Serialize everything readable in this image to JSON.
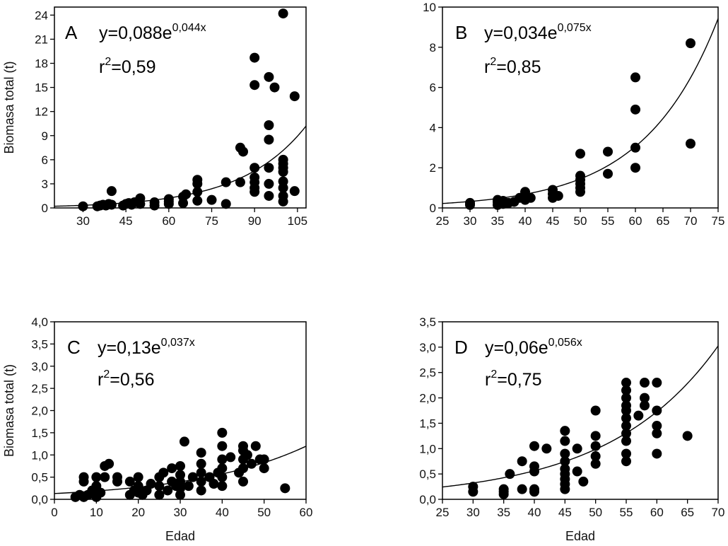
{
  "figure": {
    "shared_ylabel": "Biomasa total (t)",
    "shared_xlabel": "Edad"
  },
  "chart_data": [
    {
      "type": "scatter",
      "panel": "A",
      "xlabel": "",
      "ylabel": "Biomasa total (t)",
      "equation_main": "y=0,088e",
      "equation_exp": "0,044x",
      "r2_label": "r",
      "r2_sup": "2",
      "r2_value": "=0,59",
      "xlim": [
        20,
        108
      ],
      "ylim": [
        0,
        25
      ],
      "xticks": [
        30,
        45,
        60,
        75,
        90,
        105
      ],
      "xtick_labels": [
        "30",
        "45",
        "60",
        "75",
        "90",
        "105"
      ],
      "yticks": [
        0,
        3,
        6,
        9,
        12,
        15,
        18,
        21,
        24
      ],
      "ytick_labels": [
        "0",
        "3",
        "6",
        "9",
        "12",
        "15",
        "18",
        "21",
        "24"
      ],
      "fit": {
        "a": 0.088,
        "b": 0.044
      },
      "points": [
        [
          30,
          0.2
        ],
        [
          35,
          0.2
        ],
        [
          36,
          0.3
        ],
        [
          37,
          0.4
        ],
        [
          38,
          0.3
        ],
        [
          39,
          0.5
        ],
        [
          40,
          0.4
        ],
        [
          40,
          2.1
        ],
        [
          44,
          0.3
        ],
        [
          45,
          0.5
        ],
        [
          46,
          0.6
        ],
        [
          47,
          0.4
        ],
        [
          48,
          0.7
        ],
        [
          50,
          0.5
        ],
        [
          50,
          1.2
        ],
        [
          55,
          0.7
        ],
        [
          55,
          0.3
        ],
        [
          60,
          0.5
        ],
        [
          60,
          1.1
        ],
        [
          60,
          0.8
        ],
        [
          65,
          0.6
        ],
        [
          65,
          1.4
        ],
        [
          66,
          1.7
        ],
        [
          70,
          0.9
        ],
        [
          70,
          2.0
        ],
        [
          70,
          3.0
        ],
        [
          70,
          3.5
        ],
        [
          75,
          1.0
        ],
        [
          80,
          0.5
        ],
        [
          80,
          3.2
        ],
        [
          85,
          7.5
        ],
        [
          86,
          7.0
        ],
        [
          85,
          3.2
        ],
        [
          90,
          18.7
        ],
        [
          90,
          15.3
        ],
        [
          90,
          5.0
        ],
        [
          90,
          3.8
        ],
        [
          90,
          3.2
        ],
        [
          90,
          2.5
        ],
        [
          90,
          2.0
        ],
        [
          95,
          16.3
        ],
        [
          97,
          15.0
        ],
        [
          95,
          10.3
        ],
        [
          95,
          8.5
        ],
        [
          95,
          5.0
        ],
        [
          95,
          3.0
        ],
        [
          95,
          1.5
        ],
        [
          100,
          24.2
        ],
        [
          100,
          6.0
        ],
        [
          100,
          5.5
        ],
        [
          100,
          5.0
        ],
        [
          100,
          4.5
        ],
        [
          100,
          3.3
        ],
        [
          100,
          2.5
        ],
        [
          100,
          1.5
        ],
        [
          100,
          0.8
        ],
        [
          104,
          13.9
        ],
        [
          104,
          2.1
        ]
      ]
    },
    {
      "type": "scatter",
      "panel": "B",
      "xlabel": "",
      "ylabel": "",
      "equation_main": "y=0,034e",
      "equation_exp": "0,075x",
      "r2_label": "r",
      "r2_sup": "2",
      "r2_value": "=0,85",
      "xlim": [
        25,
        75
      ],
      "ylim": [
        0,
        10
      ],
      "xticks": [
        25,
        30,
        35,
        40,
        45,
        50,
        55,
        60,
        65,
        70,
        75
      ],
      "xtick_labels": [
        "25",
        "30",
        "35",
        "40",
        "45",
        "50",
        "55",
        "60",
        "65",
        "70",
        "75"
      ],
      "yticks": [
        0,
        2,
        4,
        6,
        8,
        10
      ],
      "ytick_labels": [
        "0",
        "2",
        "4",
        "6",
        "8",
        "10"
      ],
      "fit": {
        "a": 0.034,
        "b": 0.075
      },
      "points": [
        [
          30,
          0.15
        ],
        [
          30,
          0.25
        ],
        [
          35,
          0.15
        ],
        [
          35,
          0.3
        ],
        [
          35,
          0.4
        ],
        [
          36,
          0.2
        ],
        [
          36,
          0.35
        ],
        [
          37,
          0.25
        ],
        [
          38,
          0.3
        ],
        [
          39,
          0.5
        ],
        [
          40,
          0.4
        ],
        [
          40,
          0.6
        ],
        [
          40,
          0.8
        ],
        [
          41,
          0.5
        ],
        [
          45,
          0.5
        ],
        [
          45,
          0.7
        ],
        [
          45,
          0.9
        ],
        [
          46,
          0.6
        ],
        [
          50,
          0.8
        ],
        [
          50,
          1.0
        ],
        [
          50,
          1.2
        ],
        [
          50,
          1.4
        ],
        [
          50,
          1.6
        ],
        [
          50,
          2.7
        ],
        [
          55,
          1.7
        ],
        [
          55,
          2.8
        ],
        [
          60,
          2.0
        ],
        [
          60,
          3.0
        ],
        [
          60,
          4.9
        ],
        [
          60,
          6.5
        ],
        [
          70,
          3.2
        ],
        [
          70,
          8.2
        ]
      ]
    },
    {
      "type": "scatter",
      "panel": "C",
      "xlabel": "Edad",
      "ylabel": "Biomasa total (t)",
      "equation_main": "y=0,13e",
      "equation_exp": "0,037x",
      "r2_label": "r",
      "r2_sup": "2",
      "r2_value": "=0,56",
      "xlim": [
        0,
        60
      ],
      "ylim": [
        0,
        4
      ],
      "xticks": [
        0,
        10,
        20,
        30,
        40,
        50,
        60
      ],
      "xtick_labels": [
        "0",
        "10",
        "20",
        "30",
        "40",
        "50",
        "60"
      ],
      "yticks": [
        0,
        0.5,
        1,
        1.5,
        2,
        2.5,
        3,
        3.5,
        4
      ],
      "ytick_labels": [
        "0,0",
        "0,5",
        "1,0",
        "1,5",
        "2,0",
        "2,5",
        "3,0",
        "3,5",
        "4,0"
      ],
      "fit": {
        "a": 0.13,
        "b": 0.037
      },
      "points": [
        [
          5,
          0.05
        ],
        [
          6,
          0.1
        ],
        [
          7,
          0.05
        ],
        [
          7,
          0.4
        ],
        [
          7,
          0.5
        ],
        [
          8,
          0.1
        ],
        [
          9,
          0.2
        ],
        [
          10,
          0.05
        ],
        [
          10,
          0.3
        ],
        [
          10,
          0.5
        ],
        [
          11,
          0.15
        ],
        [
          12,
          0.5
        ],
        [
          12,
          0.75
        ],
        [
          13,
          0.8
        ],
        [
          15,
          0.4
        ],
        [
          15,
          0.5
        ],
        [
          18,
          0.1
        ],
        [
          18,
          0.4
        ],
        [
          19,
          0.2
        ],
        [
          20,
          0.15
        ],
        [
          20,
          0.3
        ],
        [
          20,
          0.5
        ],
        [
          21,
          0.1
        ],
        [
          22,
          0.2
        ],
        [
          23,
          0.35
        ],
        [
          25,
          0.1
        ],
        [
          25,
          0.3
        ],
        [
          25,
          0.5
        ],
        [
          26,
          0.6
        ],
        [
          27,
          0.2
        ],
        [
          28,
          0.4
        ],
        [
          28,
          0.7
        ],
        [
          29,
          0.3
        ],
        [
          30,
          0.1
        ],
        [
          30,
          0.25
        ],
        [
          30,
          0.4
        ],
        [
          30,
          0.55
        ],
        [
          30,
          0.75
        ],
        [
          31,
          1.3
        ],
        [
          32,
          0.3
        ],
        [
          33,
          0.5
        ],
        [
          35,
          0.2
        ],
        [
          35,
          0.4
        ],
        [
          35,
          0.6
        ],
        [
          35,
          0.8
        ],
        [
          35,
          1.05
        ],
        [
          37,
          0.5
        ],
        [
          38,
          0.35
        ],
        [
          39,
          0.6
        ],
        [
          40,
          0.3
        ],
        [
          40,
          0.5
        ],
        [
          40,
          0.7
        ],
        [
          40,
          0.9
        ],
        [
          40,
          1.2
        ],
        [
          40,
          1.5
        ],
        [
          42,
          0.95
        ],
        [
          44,
          0.6
        ],
        [
          45,
          0.4
        ],
        [
          45,
          0.7
        ],
        [
          45,
          0.9
        ],
        [
          45,
          1.1
        ],
        [
          45,
          1.2
        ],
        [
          46,
          1.0
        ],
        [
          47,
          0.8
        ],
        [
          48,
          1.2
        ],
        [
          49,
          0.9
        ],
        [
          50,
          0.7
        ],
        [
          50,
          0.9
        ],
        [
          55,
          0.25
        ]
      ]
    },
    {
      "type": "scatter",
      "panel": "D",
      "xlabel": "Edad",
      "ylabel": "",
      "equation_main": "y=0,06e",
      "equation_exp": "0,056x",
      "r2_label": "r",
      "r2_sup": "2",
      "r2_value": "=0,75",
      "xlim": [
        25,
        70
      ],
      "ylim": [
        0,
        3.5
      ],
      "xticks": [
        25,
        30,
        35,
        40,
        45,
        50,
        55,
        60,
        65,
        70
      ],
      "xtick_labels": [
        "25",
        "30",
        "35",
        "40",
        "45",
        "50",
        "55",
        "60",
        "65",
        "70"
      ],
      "yticks": [
        0,
        0.5,
        1,
        1.5,
        2,
        2.5,
        3,
        3.5
      ],
      "ytick_labels": [
        "0,0",
        "0,5",
        "1,0",
        "1,5",
        "2,0",
        "2,5",
        "3,0",
        "3,5"
      ],
      "fit": {
        "a": 0.06,
        "b": 0.056
      },
      "points": [
        [
          30,
          0.15
        ],
        [
          30,
          0.25
        ],
        [
          35,
          0.1
        ],
        [
          35,
          0.15
        ],
        [
          35,
          0.2
        ],
        [
          36,
          0.5
        ],
        [
          38,
          0.2
        ],
        [
          38,
          0.75
        ],
        [
          40,
          0.15
        ],
        [
          40,
          0.2
        ],
        [
          40,
          0.55
        ],
        [
          40,
          0.65
        ],
        [
          40,
          1.05
        ],
        [
          42,
          1.0
        ],
        [
          45,
          0.2
        ],
        [
          45,
          0.3
        ],
        [
          45,
          0.4
        ],
        [
          45,
          0.5
        ],
        [
          45,
          0.6
        ],
        [
          45,
          0.75
        ],
        [
          45,
          0.9
        ],
        [
          45,
          1.15
        ],
        [
          45,
          1.35
        ],
        [
          47,
          0.55
        ],
        [
          47,
          1.0
        ],
        [
          48,
          0.35
        ],
        [
          50,
          0.7
        ],
        [
          50,
          0.85
        ],
        [
          50,
          1.05
        ],
        [
          50,
          1.25
        ],
        [
          50,
          1.75
        ],
        [
          55,
          0.75
        ],
        [
          55,
          0.9
        ],
        [
          55,
          1.15
        ],
        [
          55,
          1.3
        ],
        [
          55,
          1.45
        ],
        [
          55,
          1.6
        ],
        [
          55,
          1.75
        ],
        [
          55,
          1.85
        ],
        [
          55,
          2.0
        ],
        [
          55,
          2.15
        ],
        [
          55,
          2.3
        ],
        [
          57,
          1.65
        ],
        [
          58,
          1.85
        ],
        [
          58,
          2.0
        ],
        [
          58,
          2.3
        ],
        [
          60,
          0.9
        ],
        [
          60,
          1.3
        ],
        [
          60,
          1.45
        ],
        [
          60,
          1.75
        ],
        [
          60,
          2.3
        ],
        [
          65,
          1.25
        ]
      ]
    }
  ]
}
